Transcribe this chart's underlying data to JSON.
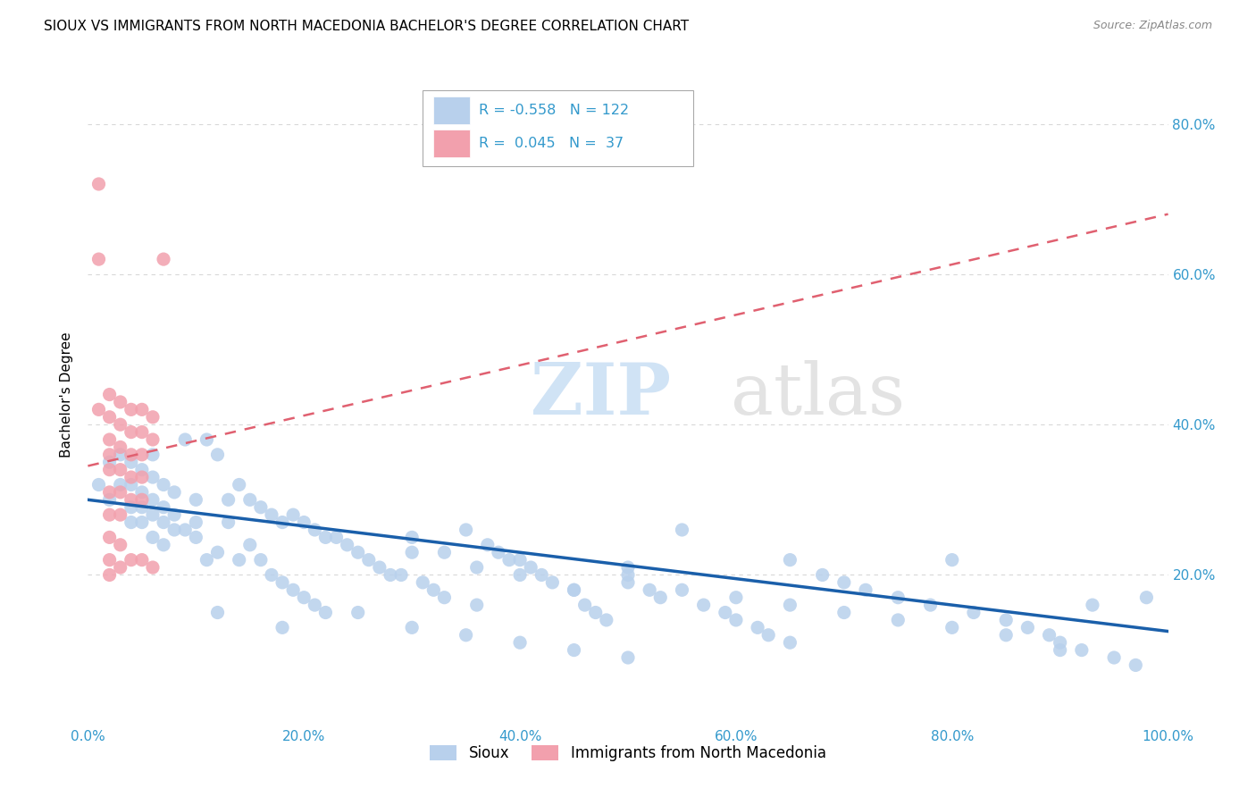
{
  "title": "SIOUX VS IMMIGRANTS FROM NORTH MACEDONIA BACHELOR'S DEGREE CORRELATION CHART",
  "source": "Source: ZipAtlas.com",
  "ylabel": "Bachelor's Degree",
  "yticks": [
    "20.0%",
    "40.0%",
    "60.0%",
    "80.0%"
  ],
  "ytick_vals": [
    0.2,
    0.4,
    0.6,
    0.8
  ],
  "xtick_vals": [
    0.0,
    0.2,
    0.4,
    0.6,
    0.8,
    1.0
  ],
  "xtick_labels": [
    "0.0%",
    "20.0%",
    "40.0%",
    "60.0%",
    "80.0%",
    "100.0%"
  ],
  "xlim": [
    0.0,
    1.0
  ],
  "ylim": [
    0.0,
    0.88
  ],
  "color_sioux": "#b8d0ec",
  "color_macedonia": "#f2a0ad",
  "color_sioux_line": "#1a5faa",
  "color_macedonia_line": "#e06070",
  "label_sioux": "Sioux",
  "label_macedonia": "Immigrants from North Macedonia",
  "sioux_x": [
    0.01,
    0.02,
    0.02,
    0.03,
    0.03,
    0.04,
    0.04,
    0.04,
    0.04,
    0.05,
    0.05,
    0.05,
    0.05,
    0.06,
    0.06,
    0.06,
    0.06,
    0.06,
    0.07,
    0.07,
    0.07,
    0.07,
    0.08,
    0.08,
    0.08,
    0.09,
    0.09,
    0.1,
    0.1,
    0.1,
    0.11,
    0.11,
    0.12,
    0.12,
    0.13,
    0.13,
    0.14,
    0.14,
    0.15,
    0.15,
    0.16,
    0.16,
    0.17,
    0.17,
    0.18,
    0.18,
    0.19,
    0.19,
    0.2,
    0.2,
    0.21,
    0.21,
    0.22,
    0.22,
    0.23,
    0.24,
    0.25,
    0.26,
    0.27,
    0.28,
    0.29,
    0.3,
    0.31,
    0.32,
    0.33,
    0.35,
    0.36,
    0.37,
    0.38,
    0.39,
    0.4,
    0.41,
    0.42,
    0.43,
    0.45,
    0.46,
    0.47,
    0.48,
    0.5,
    0.5,
    0.52,
    0.53,
    0.55,
    0.57,
    0.59,
    0.6,
    0.62,
    0.63,
    0.65,
    0.65,
    0.68,
    0.7,
    0.72,
    0.75,
    0.78,
    0.8,
    0.82,
    0.85,
    0.87,
    0.89,
    0.9,
    0.92,
    0.93,
    0.95,
    0.97,
    0.98,
    0.3,
    0.33,
    0.36,
    0.4,
    0.45,
    0.5,
    0.55,
    0.6,
    0.65,
    0.7,
    0.75,
    0.8,
    0.85,
    0.9,
    0.12,
    0.18,
    0.25,
    0.3,
    0.35,
    0.4,
    0.45,
    0.5
  ],
  "sioux_y": [
    0.32,
    0.35,
    0.3,
    0.36,
    0.32,
    0.35,
    0.32,
    0.29,
    0.27,
    0.34,
    0.31,
    0.29,
    0.27,
    0.36,
    0.33,
    0.3,
    0.28,
    0.25,
    0.32,
    0.29,
    0.27,
    0.24,
    0.31,
    0.28,
    0.26,
    0.38,
    0.26,
    0.3,
    0.27,
    0.25,
    0.38,
    0.22,
    0.36,
    0.23,
    0.3,
    0.27,
    0.32,
    0.22,
    0.3,
    0.24,
    0.29,
    0.22,
    0.28,
    0.2,
    0.27,
    0.19,
    0.28,
    0.18,
    0.27,
    0.17,
    0.26,
    0.16,
    0.25,
    0.15,
    0.25,
    0.24,
    0.23,
    0.22,
    0.21,
    0.2,
    0.2,
    0.23,
    0.19,
    0.18,
    0.17,
    0.26,
    0.16,
    0.24,
    0.23,
    0.22,
    0.22,
    0.21,
    0.2,
    0.19,
    0.18,
    0.16,
    0.15,
    0.14,
    0.21,
    0.19,
    0.18,
    0.17,
    0.26,
    0.16,
    0.15,
    0.14,
    0.13,
    0.12,
    0.22,
    0.11,
    0.2,
    0.19,
    0.18,
    0.17,
    0.16,
    0.22,
    0.15,
    0.14,
    0.13,
    0.12,
    0.11,
    0.1,
    0.16,
    0.09,
    0.08,
    0.17,
    0.25,
    0.23,
    0.21,
    0.2,
    0.18,
    0.2,
    0.18,
    0.17,
    0.16,
    0.15,
    0.14,
    0.13,
    0.12,
    0.1,
    0.15,
    0.13,
    0.15,
    0.13,
    0.12,
    0.11,
    0.1,
    0.09
  ],
  "mac_x": [
    0.01,
    0.01,
    0.02,
    0.02,
    0.02,
    0.02,
    0.02,
    0.02,
    0.02,
    0.02,
    0.02,
    0.02,
    0.03,
    0.03,
    0.03,
    0.03,
    0.03,
    0.03,
    0.03,
    0.03,
    0.04,
    0.04,
    0.04,
    0.04,
    0.04,
    0.04,
    0.05,
    0.05,
    0.05,
    0.05,
    0.05,
    0.05,
    0.06,
    0.06,
    0.06,
    0.07,
    0.01
  ],
  "mac_y": [
    0.72,
    0.42,
    0.44,
    0.41,
    0.38,
    0.36,
    0.34,
    0.31,
    0.28,
    0.25,
    0.22,
    0.2,
    0.43,
    0.4,
    0.37,
    0.34,
    0.31,
    0.28,
    0.24,
    0.21,
    0.42,
    0.39,
    0.36,
    0.33,
    0.3,
    0.22,
    0.42,
    0.39,
    0.36,
    0.33,
    0.3,
    0.22,
    0.41,
    0.38,
    0.21,
    0.62,
    0.62
  ],
  "sioux_line_x0": 0.0,
  "sioux_line_y0": 0.3,
  "sioux_line_x1": 1.0,
  "sioux_line_y1": 0.125,
  "mac_line_x0": 0.0,
  "mac_line_y0": 0.345,
  "mac_line_x1": 1.0,
  "mac_line_y1": 0.68
}
